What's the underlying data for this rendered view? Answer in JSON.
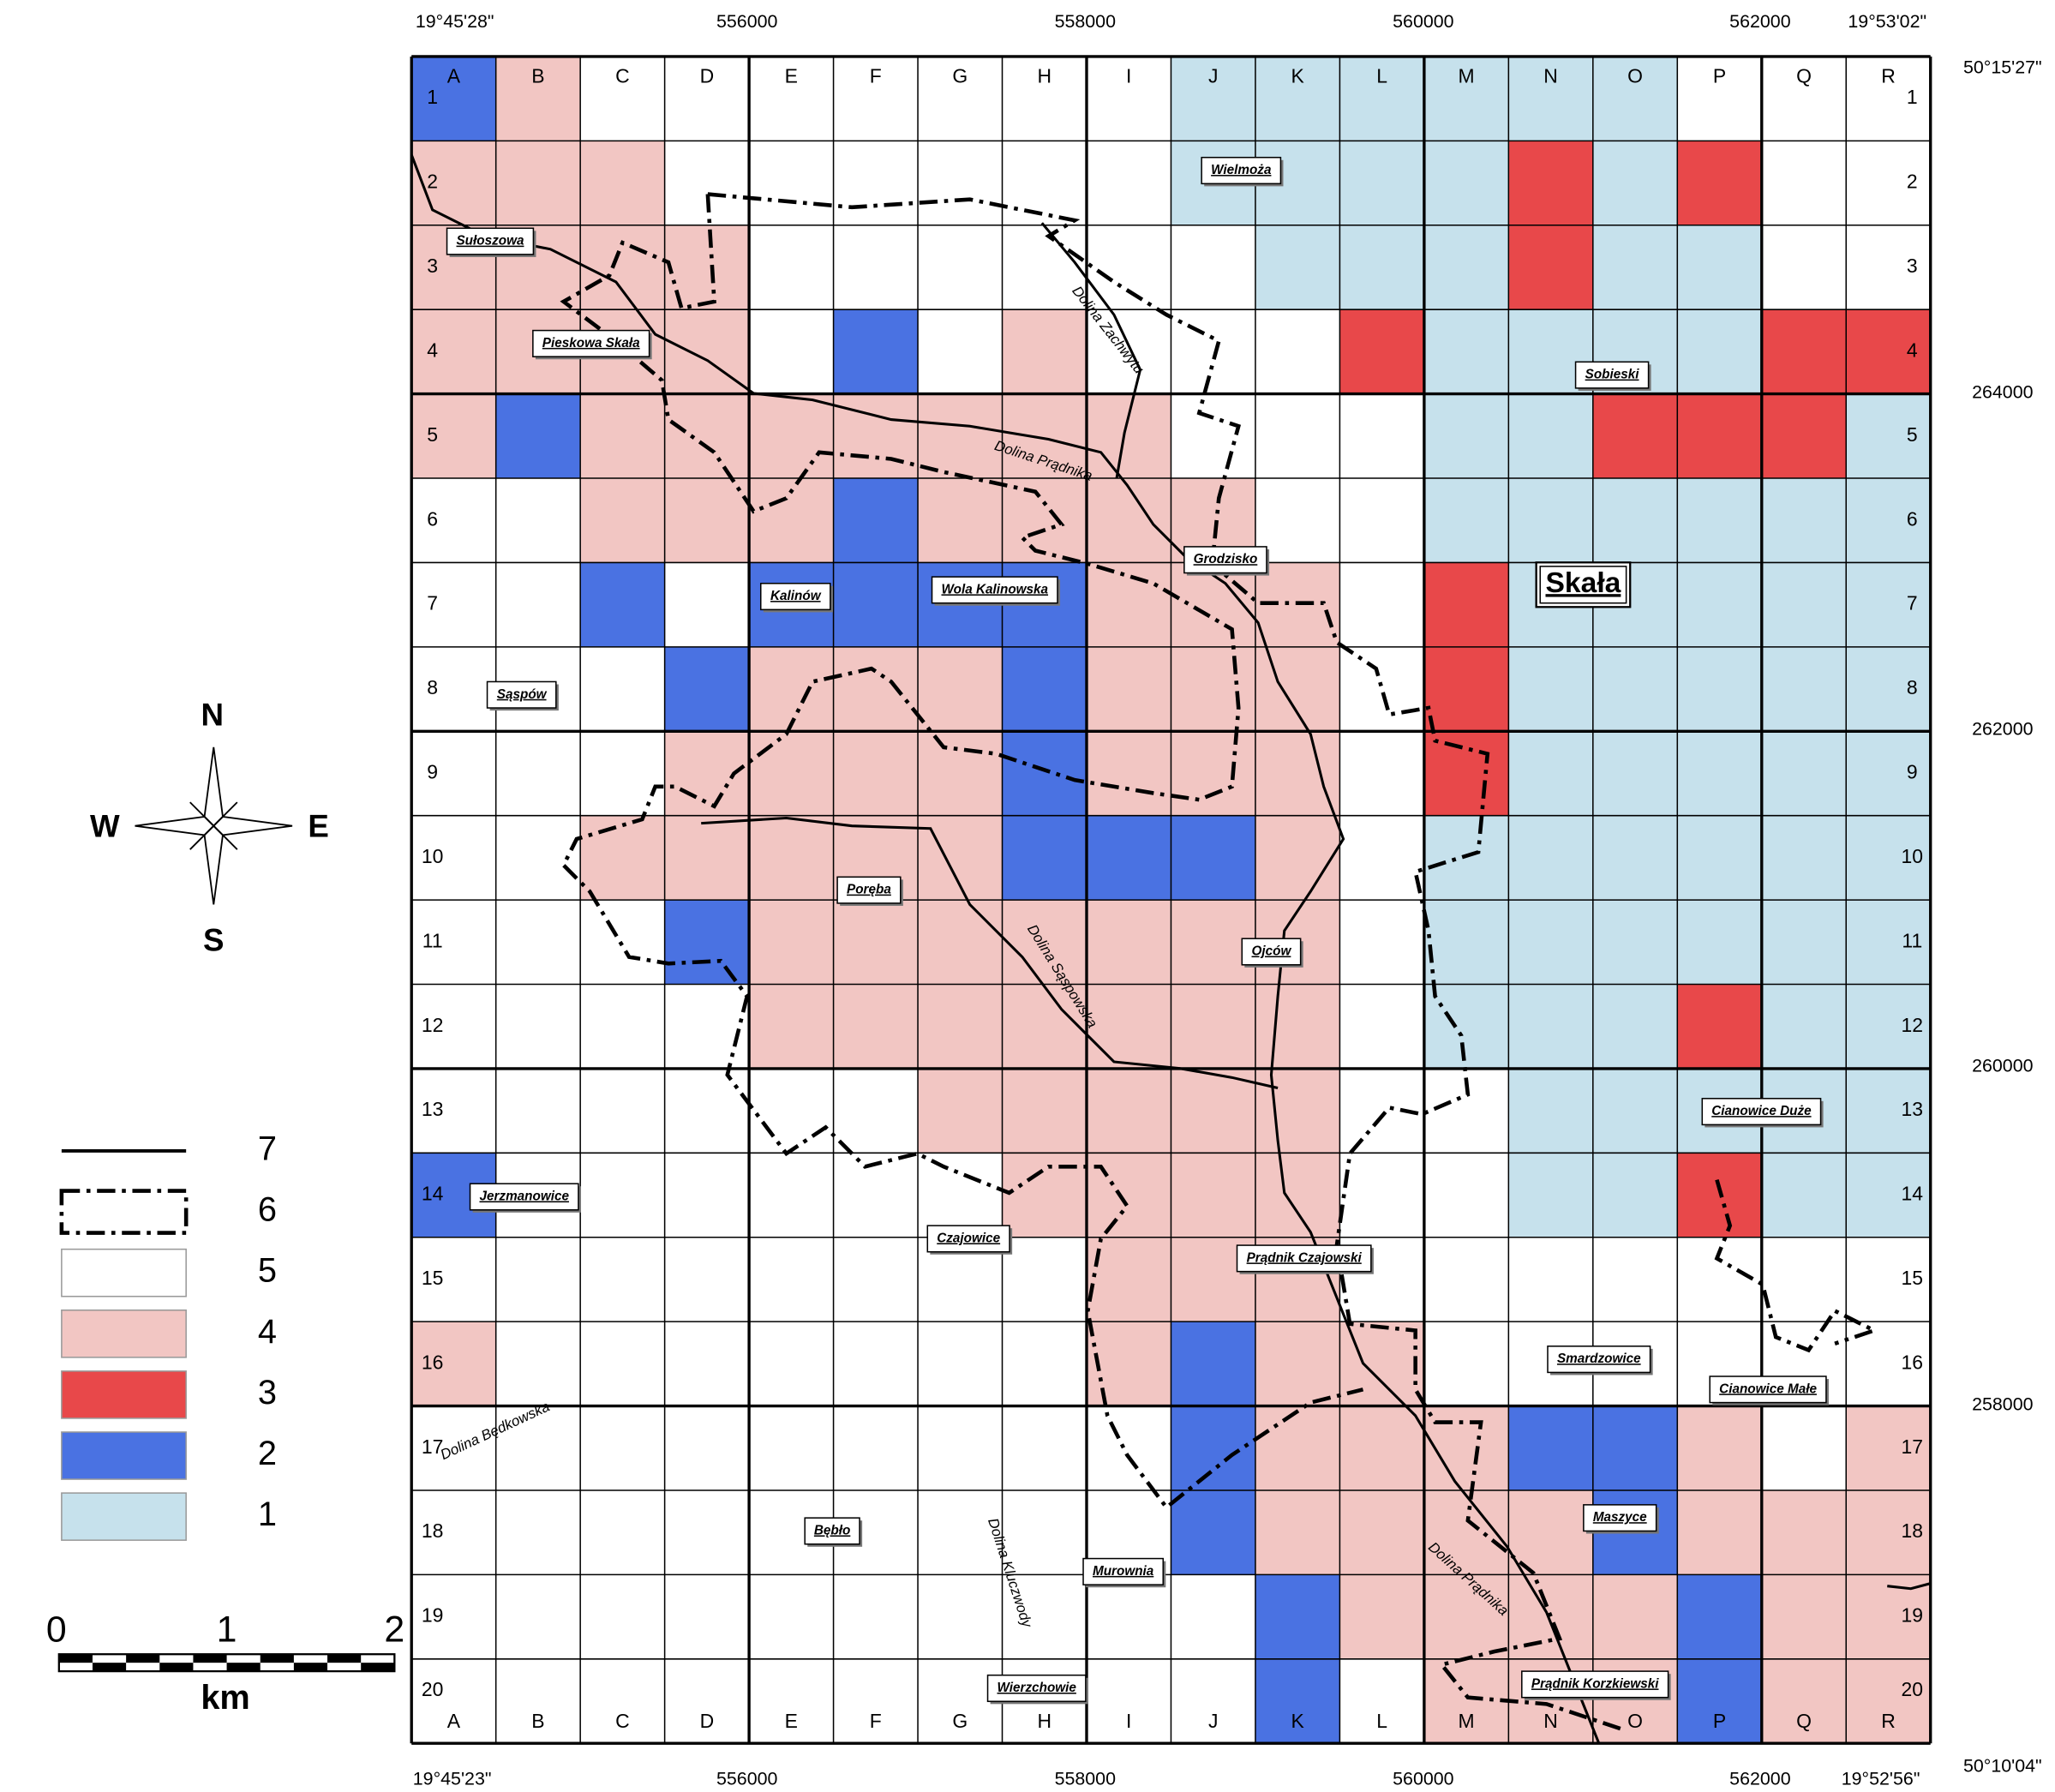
{
  "map": {
    "columns": [
      "A",
      "B",
      "C",
      "D",
      "E",
      "F",
      "G",
      "H",
      "I",
      "J",
      "K",
      "L",
      "M",
      "N",
      "O",
      "P",
      "Q",
      "R"
    ],
    "rows": [
      1,
      2,
      3,
      4,
      5,
      6,
      7,
      8,
      9,
      10,
      11,
      12,
      13,
      14,
      15,
      16,
      17,
      18,
      19,
      20
    ],
    "cells": [
      [
        2,
        4,
        5,
        5,
        5,
        5,
        5,
        5,
        5,
        1,
        1,
        1,
        1,
        1,
        1,
        5,
        5,
        5
      ],
      [
        4,
        4,
        4,
        5,
        5,
        5,
        5,
        5,
        5,
        1,
        1,
        1,
        1,
        3,
        1,
        3,
        5,
        5
      ],
      [
        4,
        4,
        4,
        4,
        5,
        5,
        5,
        5,
        5,
        5,
        1,
        1,
        1,
        3,
        1,
        1,
        5,
        5
      ],
      [
        4,
        4,
        4,
        4,
        5,
        2,
        5,
        4,
        5,
        5,
        5,
        3,
        1,
        1,
        1,
        1,
        3,
        3
      ],
      [
        4,
        2,
        4,
        4,
        4,
        4,
        4,
        4,
        4,
        5,
        5,
        5,
        1,
        1,
        3,
        3,
        3,
        1
      ],
      [
        5,
        5,
        4,
        4,
        4,
        2,
        4,
        4,
        4,
        4,
        5,
        5,
        1,
        1,
        1,
        1,
        1,
        1
      ],
      [
        5,
        5,
        2,
        5,
        2,
        2,
        2,
        2,
        4,
        4,
        4,
        5,
        3,
        1,
        1,
        1,
        1,
        1
      ],
      [
        5,
        5,
        5,
        2,
        4,
        4,
        4,
        2,
        4,
        4,
        4,
        5,
        3,
        1,
        1,
        1,
        1,
        1
      ],
      [
        5,
        5,
        5,
        4,
        4,
        4,
        4,
        2,
        4,
        4,
        4,
        5,
        3,
        1,
        1,
        1,
        1,
        1
      ],
      [
        5,
        5,
        4,
        4,
        4,
        4,
        4,
        2,
        2,
        2,
        4,
        5,
        1,
        1,
        1,
        1,
        1,
        1
      ],
      [
        5,
        5,
        5,
        2,
        4,
        4,
        4,
        4,
        4,
        4,
        4,
        5,
        1,
        1,
        1,
        1,
        1,
        1
      ],
      [
        5,
        5,
        5,
        5,
        4,
        4,
        4,
        4,
        4,
        4,
        4,
        5,
        1,
        1,
        1,
        3,
        1,
        1
      ],
      [
        5,
        5,
        5,
        5,
        5,
        5,
        4,
        4,
        4,
        4,
        4,
        5,
        5,
        1,
        1,
        1,
        1,
        1
      ],
      [
        2,
        5,
        5,
        5,
        5,
        5,
        5,
        4,
        4,
        4,
        4,
        5,
        5,
        1,
        1,
        3,
        1,
        1
      ],
      [
        5,
        5,
        5,
        5,
        5,
        5,
        5,
        5,
        4,
        4,
        4,
        5,
        5,
        5,
        5,
        5,
        5,
        5
      ],
      [
        4,
        5,
        5,
        5,
        5,
        5,
        5,
        5,
        4,
        2,
        4,
        4,
        5,
        5,
        5,
        5,
        5,
        5
      ],
      [
        5,
        5,
        5,
        5,
        5,
        5,
        5,
        5,
        5,
        2,
        4,
        4,
        4,
        2,
        2,
        4,
        5,
        4
      ],
      [
        5,
        5,
        5,
        5,
        5,
        5,
        5,
        5,
        5,
        2,
        4,
        4,
        4,
        4,
        2,
        4,
        4,
        4
      ],
      [
        5,
        5,
        5,
        5,
        5,
        5,
        5,
        5,
        5,
        5,
        2,
        4,
        4,
        4,
        4,
        2,
        4,
        4
      ],
      [
        5,
        5,
        5,
        5,
        5,
        5,
        5,
        5,
        5,
        5,
        2,
        5,
        4,
        4,
        4,
        2,
        4,
        4
      ]
    ],
    "coords": {
      "top": [
        "19°45'28\"",
        556000,
        558000,
        560000,
        562000,
        "19°53'02\""
      ],
      "right": [
        "50°15'27\"",
        264000,
        262000,
        260000,
        258000,
        "50°10'04\""
      ],
      "bottom": [
        "19°45'23\"",
        556000,
        558000,
        560000,
        562000,
        "19°52'56\""
      ]
    },
    "town": "Skała",
    "places": [
      "Wielmoża",
      "Sułoszowa",
      "Pieskowa Skała",
      "Sobieski",
      "Grodzisko",
      "Kalinów",
      "Wola Kalinowska",
      "Sąspów",
      "Poręba",
      "Ojców",
      "Cianowice Duże",
      "Jerzmanowice",
      "Czajowice",
      "Prądnik Czajowski",
      "Smardzowice",
      "Cianowice Małe",
      "Maszyce",
      "Bębło",
      "Murownia",
      "Prądnik Korzkiewski",
      "Wierzchowie"
    ],
    "valleys": [
      "Dolina Zachwytu",
      "Dolina Prądnika",
      "Dolina Sąspowska",
      "Dolina Będkowska",
      "Dolina Kluczwody",
      "Dolina Prądnika"
    ],
    "compass": {
      "n": "N",
      "w": "W",
      "e": "E",
      "s": "S"
    },
    "legend": [
      {
        "label": 7,
        "symbol": "line"
      },
      {
        "label": 6,
        "symbol": "boundary"
      },
      {
        "label": 5,
        "color": "#ffffff"
      },
      {
        "label": 4,
        "color": "#f2c6c3"
      },
      {
        "label": 3,
        "color": "#e8484a"
      },
      {
        "label": 2,
        "color": "#4a72e2"
      },
      {
        "label": 1,
        "color": "#c6e1ec"
      }
    ],
    "scale": {
      "ticks": [
        0,
        1,
        2
      ],
      "unit": "km"
    }
  }
}
